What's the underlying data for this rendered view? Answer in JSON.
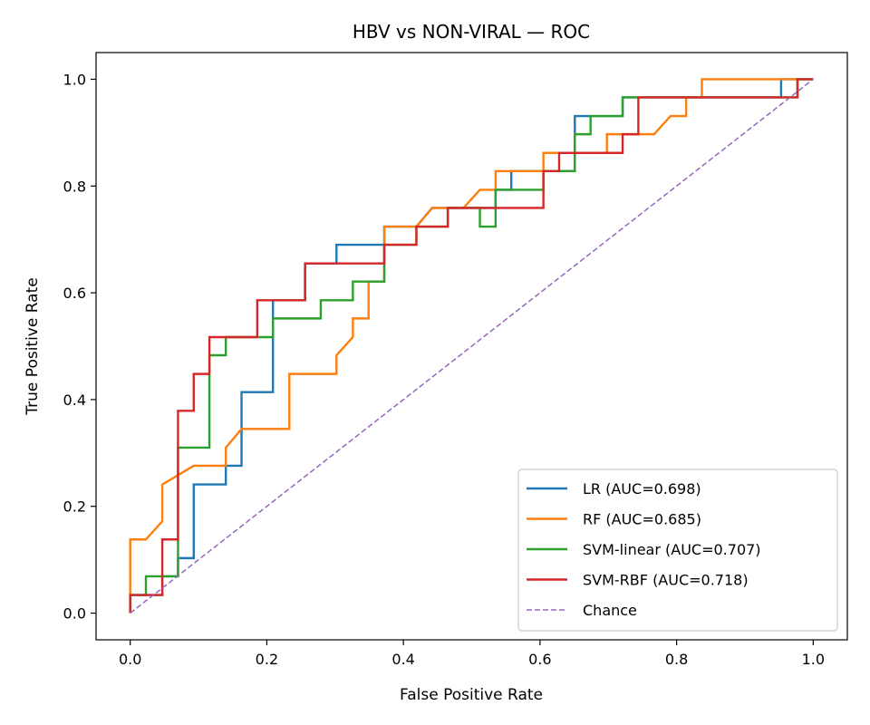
{
  "chart_data": {
    "type": "line",
    "title": "HBV vs NON-VIRAL — ROC",
    "xlabel": "False Positive Rate",
    "ylabel": "True Positive Rate",
    "xlim": [
      -0.05,
      1.05
    ],
    "ylim": [
      -0.05,
      1.05
    ],
    "x_ticks": [
      "0.0",
      "0.2",
      "0.4",
      "0.6",
      "0.8",
      "1.0"
    ],
    "y_ticks": [
      "0.0",
      "0.2",
      "0.4",
      "0.6",
      "0.8",
      "1.0"
    ],
    "grid": false,
    "legend_position": "lower right",
    "series": [
      {
        "name": "LR (AUC=0.698)",
        "color": "#1f77b4",
        "style": "solid",
        "points": [
          [
            0,
            0
          ],
          [
            0,
            0.034
          ],
          [
            0.047,
            0.034
          ],
          [
            0.047,
            0.069
          ],
          [
            0.07,
            0.069
          ],
          [
            0.07,
            0.103
          ],
          [
            0.093,
            0.103
          ],
          [
            0.093,
            0.241
          ],
          [
            0.14,
            0.241
          ],
          [
            0.14,
            0.276
          ],
          [
            0.163,
            0.276
          ],
          [
            0.163,
            0.414
          ],
          [
            0.209,
            0.414
          ],
          [
            0.209,
            0.586
          ],
          [
            0.256,
            0.586
          ],
          [
            0.256,
            0.655
          ],
          [
            0.302,
            0.655
          ],
          [
            0.302,
            0.69
          ],
          [
            0.372,
            0.69
          ],
          [
            0.372,
            0.724
          ],
          [
            0.419,
            0.724
          ],
          [
            0.442,
            0.759
          ],
          [
            0.535,
            0.759
          ],
          [
            0.535,
            0.793
          ],
          [
            0.558,
            0.793
          ],
          [
            0.558,
            0.828
          ],
          [
            0.605,
            0.828
          ],
          [
            0.651,
            0.828
          ],
          [
            0.651,
            0.931
          ],
          [
            0.674,
            0.931
          ],
          [
            0.721,
            0.931
          ],
          [
            0.721,
            0.966
          ],
          [
            0.953,
            0.966
          ],
          [
            0.953,
            1.0
          ],
          [
            1.0,
            1.0
          ]
        ]
      },
      {
        "name": "RF (AUC=0.685)",
        "color": "#ff7f0e",
        "style": "solid",
        "points": [
          [
            0,
            0
          ],
          [
            0,
            0.138
          ],
          [
            0.023,
            0.138
          ],
          [
            0.047,
            0.172
          ],
          [
            0.047,
            0.241
          ],
          [
            0.093,
            0.276
          ],
          [
            0.14,
            0.276
          ],
          [
            0.14,
            0.31
          ],
          [
            0.163,
            0.345
          ],
          [
            0.233,
            0.345
          ],
          [
            0.233,
            0.448
          ],
          [
            0.302,
            0.448
          ],
          [
            0.302,
            0.483
          ],
          [
            0.326,
            0.517
          ],
          [
            0.326,
            0.552
          ],
          [
            0.349,
            0.552
          ],
          [
            0.349,
            0.621
          ],
          [
            0.372,
            0.621
          ],
          [
            0.372,
            0.724
          ],
          [
            0.419,
            0.724
          ],
          [
            0.442,
            0.759
          ],
          [
            0.488,
            0.759
          ],
          [
            0.512,
            0.793
          ],
          [
            0.535,
            0.793
          ],
          [
            0.535,
            0.828
          ],
          [
            0.605,
            0.828
          ],
          [
            0.605,
            0.862
          ],
          [
            0.674,
            0.862
          ],
          [
            0.698,
            0.862
          ],
          [
            0.698,
            0.897
          ],
          [
            0.767,
            0.897
          ],
          [
            0.791,
            0.931
          ],
          [
            0.814,
            0.931
          ],
          [
            0.814,
            0.966
          ],
          [
            0.837,
            0.966
          ],
          [
            0.837,
            1.0
          ],
          [
            1.0,
            1.0
          ]
        ]
      },
      {
        "name": "SVM-linear (AUC=0.707)",
        "color": "#2ca02c",
        "style": "solid",
        "points": [
          [
            0,
            0
          ],
          [
            0,
            0.034
          ],
          [
            0.023,
            0.034
          ],
          [
            0.023,
            0.069
          ],
          [
            0.07,
            0.069
          ],
          [
            0.07,
            0.31
          ],
          [
            0.116,
            0.31
          ],
          [
            0.116,
            0.483
          ],
          [
            0.14,
            0.483
          ],
          [
            0.14,
            0.517
          ],
          [
            0.209,
            0.517
          ],
          [
            0.209,
            0.552
          ],
          [
            0.279,
            0.552
          ],
          [
            0.279,
            0.586
          ],
          [
            0.326,
            0.586
          ],
          [
            0.326,
            0.621
          ],
          [
            0.372,
            0.621
          ],
          [
            0.372,
            0.69
          ],
          [
            0.419,
            0.69
          ],
          [
            0.419,
            0.724
          ],
          [
            0.465,
            0.724
          ],
          [
            0.465,
            0.759
          ],
          [
            0.512,
            0.759
          ],
          [
            0.512,
            0.724
          ],
          [
            0.535,
            0.724
          ],
          [
            0.535,
            0.793
          ],
          [
            0.605,
            0.793
          ],
          [
            0.605,
            0.828
          ],
          [
            0.651,
            0.828
          ],
          [
            0.651,
            0.897
          ],
          [
            0.674,
            0.897
          ],
          [
            0.674,
            0.931
          ],
          [
            0.721,
            0.931
          ],
          [
            0.721,
            0.966
          ],
          [
            0.744,
            0.966
          ],
          [
            0.977,
            0.966
          ],
          [
            0.977,
            1.0
          ],
          [
            1.0,
            1.0
          ]
        ]
      },
      {
        "name": "SVM-RBF (AUC=0.718)",
        "color": "#d62728",
        "style": "solid",
        "points": [
          [
            0,
            0
          ],
          [
            0,
            0.034
          ],
          [
            0.047,
            0.034
          ],
          [
            0.047,
            0.138
          ],
          [
            0.07,
            0.138
          ],
          [
            0.07,
            0.379
          ],
          [
            0.093,
            0.379
          ],
          [
            0.093,
            0.448
          ],
          [
            0.116,
            0.448
          ],
          [
            0.116,
            0.517
          ],
          [
            0.186,
            0.517
          ],
          [
            0.186,
            0.586
          ],
          [
            0.256,
            0.586
          ],
          [
            0.256,
            0.655
          ],
          [
            0.372,
            0.655
          ],
          [
            0.372,
            0.69
          ],
          [
            0.419,
            0.69
          ],
          [
            0.419,
            0.724
          ],
          [
            0.465,
            0.724
          ],
          [
            0.465,
            0.759
          ],
          [
            0.605,
            0.759
          ],
          [
            0.605,
            0.828
          ],
          [
            0.628,
            0.828
          ],
          [
            0.628,
            0.862
          ],
          [
            0.721,
            0.862
          ],
          [
            0.721,
            0.897
          ],
          [
            0.744,
            0.897
          ],
          [
            0.744,
            0.966
          ],
          [
            0.977,
            0.966
          ],
          [
            0.977,
            1.0
          ],
          [
            1.0,
            1.0
          ]
        ]
      },
      {
        "name": "Chance",
        "color": "#9467bd",
        "style": "dashed",
        "points": [
          [
            0,
            0
          ],
          [
            1,
            1
          ]
        ]
      }
    ]
  },
  "colors": {
    "axes": "#000000",
    "legend_border": "#cccccc",
    "background": "#ffffff"
  }
}
